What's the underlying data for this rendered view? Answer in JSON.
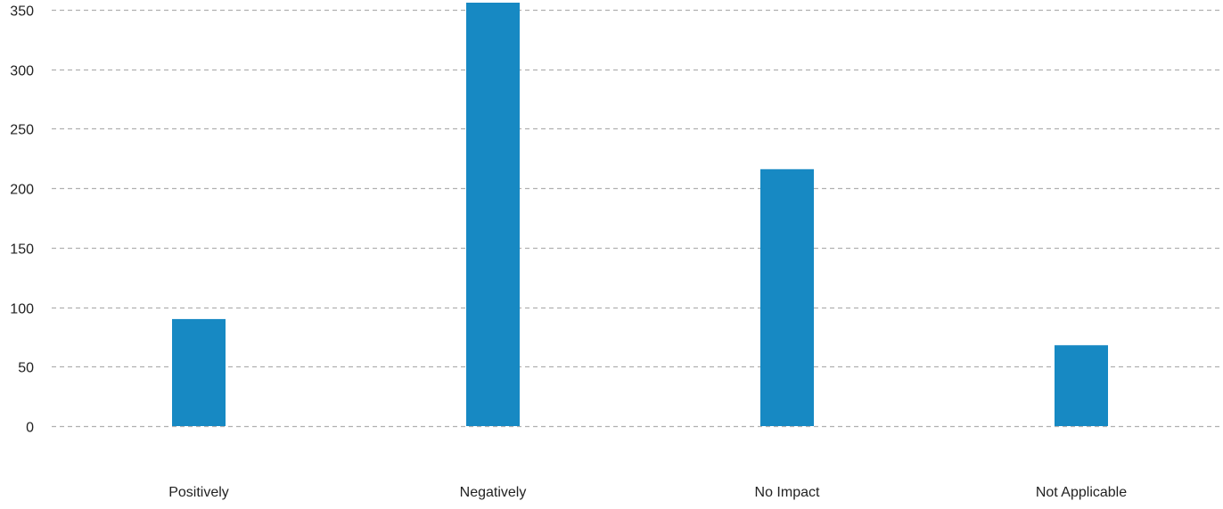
{
  "chart_data": {
    "type": "bar",
    "title": "",
    "xlabel": "",
    "ylabel": "",
    "categories": [
      "Positively",
      "Negatively",
      "No Impact",
      "Not Applicable"
    ],
    "values": [
      90,
      356,
      216,
      68
    ],
    "ylim": [
      0,
      350
    ],
    "yticks": [
      0,
      50,
      100,
      150,
      200,
      250,
      300,
      350
    ],
    "ytick_labels": [
      "0",
      "50",
      "100",
      "150",
      "200",
      "250",
      "300",
      "350"
    ],
    "grid": true,
    "grid_style": "dashed",
    "legend": "none",
    "colors": {
      "bar": "#1789c3",
      "grid": "#b0b0b0",
      "text": "#222222"
    }
  }
}
